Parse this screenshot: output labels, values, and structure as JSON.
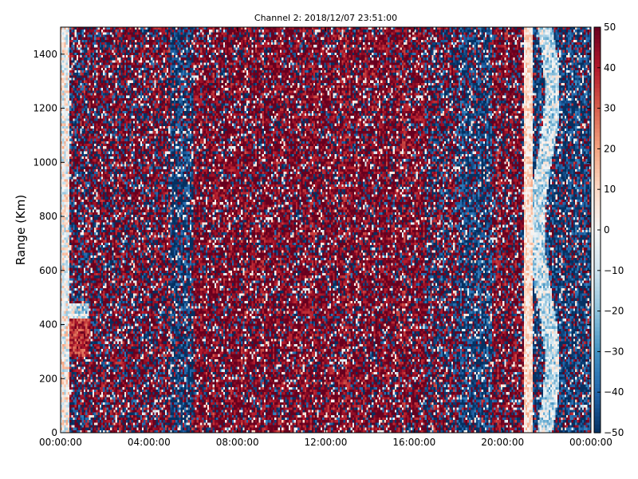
{
  "chart_data": {
    "type": "heatmap",
    "title": "Channel 2: 2018/12/07 23:51:00",
    "xlabel": "",
    "ylabel": "Range (Km)",
    "x_ticks": [
      "00:00:00",
      "04:00:00",
      "08:00:00",
      "12:00:00",
      "16:00:00",
      "20:00:00",
      "00:00:00"
    ],
    "x_range_hours": [
      0,
      24
    ],
    "y_ticks": [
      0,
      200,
      400,
      600,
      800,
      1000,
      1200,
      1400
    ],
    "ylim": [
      0,
      1500
    ],
    "colorbar": {
      "ticks": [
        50,
        40,
        30,
        20,
        10,
        0,
        -10,
        -20,
        -30,
        -40,
        -50
      ],
      "range": [
        -50,
        50
      ],
      "colormap": "RdBu_r",
      "colors": [
        "#053061",
        "#2166ac",
        "#4393c3",
        "#92c5de",
        "#d1e5f0",
        "#f7f7f7",
        "#fddbc7",
        "#f4a582",
        "#d6604d",
        "#b2182b",
        "#67001f"
      ]
    },
    "regions": [
      {
        "x_start_h": 0.0,
        "x_end_h": 0.4,
        "description": "low magnitude, mixed near zero",
        "mean": -5
      },
      {
        "x_start_h": 0.4,
        "x_end_h": 1.2,
        "description": "mixed; red blob near 350 km",
        "mean": 5
      },
      {
        "x_start_h": 1.2,
        "x_end_h": 5.0,
        "description": "saturated mix, slightly red",
        "mean": 15
      },
      {
        "x_start_h": 5.0,
        "x_end_h": 6.0,
        "description": "blue streak",
        "mean": -25
      },
      {
        "x_start_h": 6.0,
        "x_end_h": 16.5,
        "description": "mostly saturated red",
        "mean": 30
      },
      {
        "x_start_h": 16.5,
        "x_end_h": 18.0,
        "description": "mixed with light vertical lines",
        "mean": 5
      },
      {
        "x_start_h": 18.0,
        "x_end_h": 19.5,
        "description": "blue dominant",
        "mean": -25
      },
      {
        "x_start_h": 19.5,
        "x_end_h": 21.0,
        "description": "red dominant",
        "mean": 25
      },
      {
        "x_start_h": 21.0,
        "x_end_h": 21.3,
        "description": "pale vertical band",
        "mean": 5
      },
      {
        "x_start_h": 21.3,
        "x_end_h": 24.0,
        "description": "wavy pale band then blue",
        "mean": -25
      }
    ]
  }
}
